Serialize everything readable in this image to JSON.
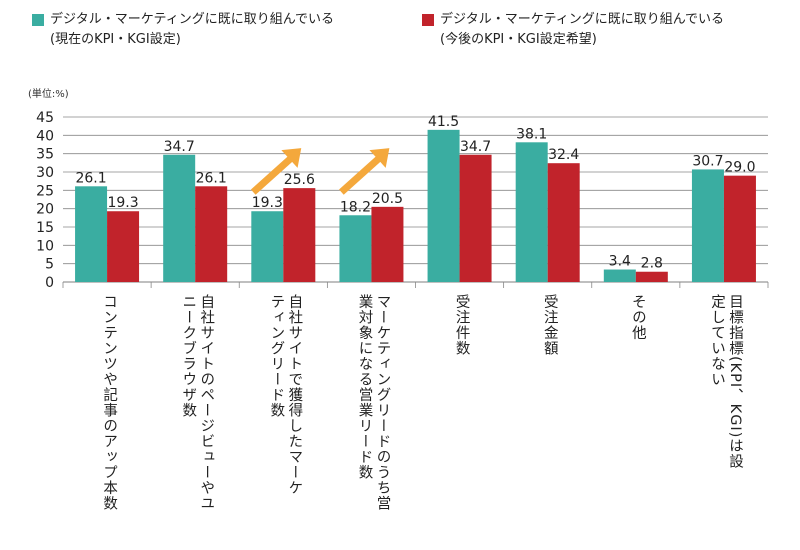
{
  "legend": [
    {
      "label": "デジタル・マーケティングに既に取り組んでいる",
      "sub": "(現在のKPI・KGI設定)",
      "color": "#3aada1"
    },
    {
      "label": "デジタル・マーケティングに既に取り組んでいる",
      "sub": "(今後のKPI・KGI設定希望)",
      "color": "#c1232b"
    }
  ],
  "unit_label": "(単位:%)",
  "chart_data": {
    "type": "bar",
    "categories": [
      "コンテンツや記事のアップ本数",
      "自社サイトのページビューやユニークブラウザ数",
      "自社サイトで獲得したマーケティングリード数",
      "マーケティングリードのうち営業対象になる営業リード数",
      "受注件数",
      "受注金額",
      "その他",
      "目標指標(KPI、KGI)は設定していない"
    ],
    "category_lines": [
      [
        "コンテンツや記事のアップ本数"
      ],
      [
        "自社サイトのページビューやユ",
        "ニークブラウザ数"
      ],
      [
        "自社サイトで獲得したマーケ",
        "ティングリード数"
      ],
      [
        "マーケティングリードのうち営",
        "業対象になる営業リード数"
      ],
      [
        "受注件数"
      ],
      [
        "受注金額"
      ],
      [
        "その他"
      ],
      [
        "目標指標(KPI、KGI)は設",
        "定していない"
      ]
    ],
    "series": [
      {
        "name": "現在のKPI・KGI設定",
        "color": "#3aada1",
        "values": [
          26.1,
          34.7,
          19.3,
          18.2,
          41.5,
          38.1,
          3.4,
          30.7
        ]
      },
      {
        "name": "今後のKPI・KGI設定希望",
        "color": "#c1232b",
        "values": [
          19.3,
          26.1,
          25.6,
          20.5,
          34.7,
          32.4,
          2.8,
          29.0
        ]
      }
    ],
    "value_labels": [
      [
        "26.1",
        "34.7",
        "19.3",
        "18.2",
        "41.5",
        "38.1",
        "3.4",
        "30.7"
      ],
      [
        "19.3",
        "26.1",
        "25.6",
        "20.5",
        "34.7",
        "32.4",
        "2.8",
        "29.0"
      ]
    ],
    "y_ticks": [
      "0",
      "5",
      "10",
      "15",
      "20",
      "25",
      "30",
      "35",
      "40",
      "45"
    ],
    "ylim": [
      0,
      45
    ],
    "arrow_categories": [
      2,
      3
    ],
    "arrow_color": "#f4a83c"
  }
}
